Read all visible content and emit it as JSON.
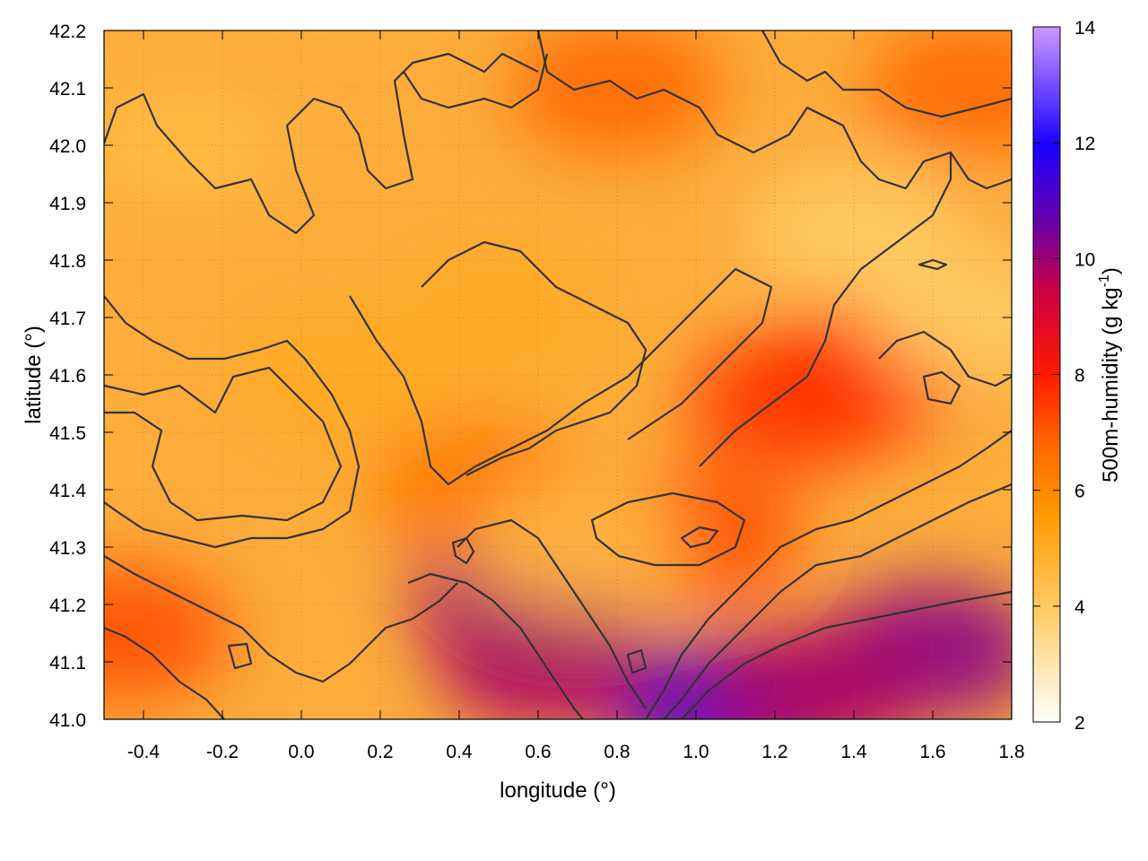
{
  "chart_data": {
    "type": "heatmap",
    "xlabel": "longitude (°)",
    "ylabel": "latitude (°)",
    "colorbar_label": "500m-humidity (g kg",
    "colorbar_label_sup": "-1",
    "colorbar_label_end": ")",
    "xlim": [
      -0.5,
      1.8
    ],
    "ylim": [
      41.0,
      42.2
    ],
    "clim": [
      2,
      14
    ],
    "x_ticks": [
      "-0.4",
      "-0.2",
      "0.0",
      "0.2",
      "0.4",
      "0.6",
      "0.8",
      "1.0",
      "1.2",
      "1.4",
      "1.6",
      "1.8"
    ],
    "x_tick_values": [
      -0.4,
      -0.2,
      0.0,
      0.2,
      0.4,
      0.6,
      0.8,
      1.0,
      1.2,
      1.4,
      1.6,
      1.8
    ],
    "y_ticks": [
      "41.0",
      "41.1",
      "41.2",
      "41.3",
      "41.4",
      "41.5",
      "41.6",
      "41.7",
      "41.8",
      "41.9",
      "42.0",
      "42.1",
      "42.2"
    ],
    "y_tick_values": [
      41.0,
      41.1,
      41.2,
      41.3,
      41.4,
      41.5,
      41.6,
      41.7,
      41.8,
      41.9,
      42.0,
      42.1,
      42.2
    ],
    "colorbar_ticks": [
      "2",
      "4",
      "6",
      "8",
      "10",
      "12",
      "14"
    ],
    "colorbar_tick_values": [
      2,
      4,
      6,
      8,
      10,
      12,
      14
    ],
    "colormap": [
      "#ffffff",
      "#ffcc66",
      "#ff9900",
      "#ff6600",
      "#ff1a00",
      "#cc0044",
      "#6600aa",
      "#1a00ff",
      "#cc99ff"
    ],
    "contour_color": "#333333",
    "grid": true,
    "field_samples": [
      {
        "lon": 1.05,
        "lat": 41.02,
        "value": 11.5
      },
      {
        "lon": 1.6,
        "lat": 41.12,
        "value": 10.5
      },
      {
        "lon": 1.3,
        "lat": 41.05,
        "value": 10.0
      },
      {
        "lon": 0.55,
        "lat": 41.22,
        "value": 10.0
      },
      {
        "lon": 0.62,
        "lat": 41.1,
        "value": 10.0
      },
      {
        "lon": 1.25,
        "lat": 41.55,
        "value": 7.5
      },
      {
        "lon": 1.4,
        "lat": 41.6,
        "value": 7.5
      },
      {
        "lon": 1.0,
        "lat": 41.32,
        "value": 7.0
      },
      {
        "lon": -0.45,
        "lat": 41.15,
        "value": 7.0
      },
      {
        "lon": 0.8,
        "lat": 42.1,
        "value": 6.5
      },
      {
        "lon": 1.7,
        "lat": 42.1,
        "value": 6.5
      },
      {
        "lon": 0.45,
        "lat": 41.4,
        "value": 6.0
      },
      {
        "lon": 0.1,
        "lat": 41.6,
        "value": 4.5
      },
      {
        "lon": 0.5,
        "lat": 41.7,
        "value": 4.5
      },
      {
        "lon": 1.4,
        "lat": 41.85,
        "value": 3.5
      },
      {
        "lon": 1.7,
        "lat": 41.7,
        "value": 3.5
      },
      {
        "lon": 0.7,
        "lat": 41.3,
        "value": 4.0
      },
      {
        "lon": -0.3,
        "lat": 42.0,
        "value": 4.0
      }
    ]
  }
}
